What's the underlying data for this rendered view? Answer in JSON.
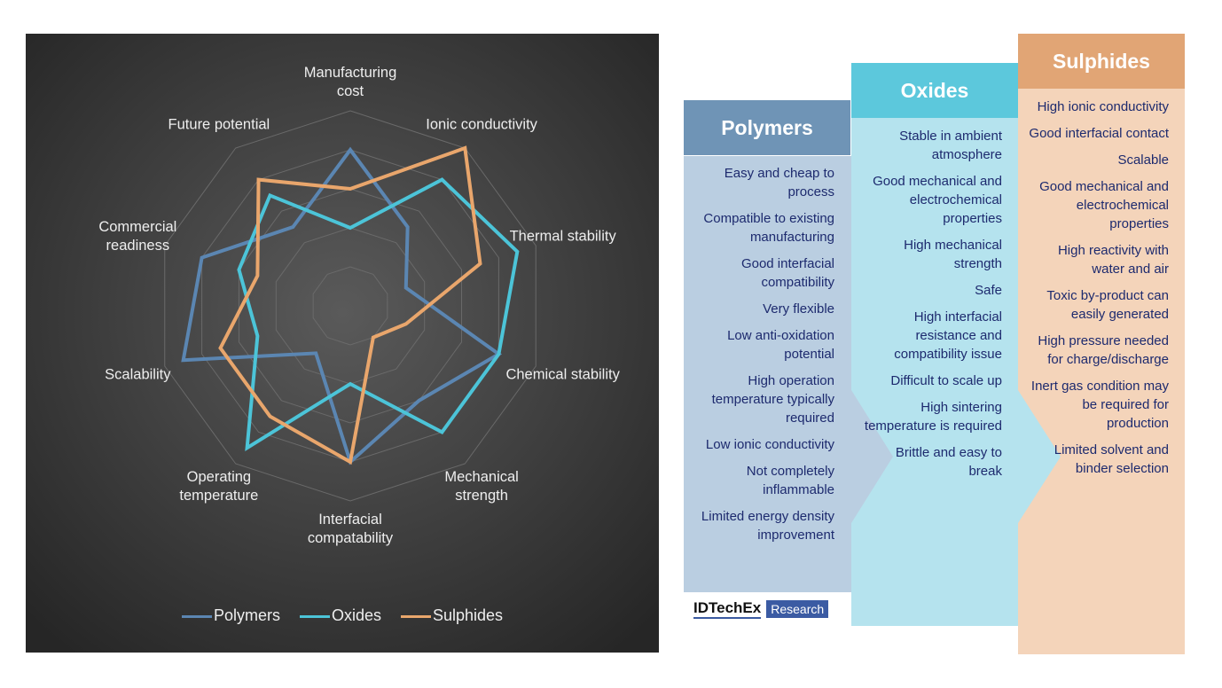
{
  "chart_data": {
    "type": "radar",
    "categories": [
      "Manufacturing cost",
      "Ionic conductivity",
      "Thermal stability",
      "Chemical stability",
      "Mechanical strength",
      "Interfacial compatability",
      "Operating temperature",
      "Scalability",
      "Commercial readiness",
      "Future potential"
    ],
    "series": [
      {
        "name": "Polymers",
        "color": "#5b86b2",
        "values": [
          8,
          5,
          3,
          8,
          6,
          8,
          3,
          9,
          8,
          5
        ]
      },
      {
        "name": "Oxides",
        "color": "#4cc4d8",
        "values": [
          4,
          8,
          9,
          8,
          8,
          4,
          9,
          5,
          6,
          7
        ]
      },
      {
        "name": "Sulphides",
        "color": "#e9a66c",
        "values": [
          6,
          10,
          7,
          3,
          2,
          8,
          7,
          7,
          5,
          8
        ]
      }
    ],
    "ylim": [
      0,
      10
    ],
    "yticks": [
      2,
      4,
      6,
      8,
      10
    ],
    "grid": true,
    "legend": "bottom"
  },
  "columns": [
    {
      "title": "Polymers",
      "items": [
        "Easy and cheap to process",
        "Compatible to existing manufacturing",
        "Good interfacial compatibility",
        "Very flexible",
        "Low anti-oxidation potential",
        "High operation temperature typically required",
        "Low ionic conductivity",
        "Not completely inflammable",
        "Limited energy density improvement"
      ]
    },
    {
      "title": "Oxides",
      "items": [
        "Stable in ambient atmosphere",
        "Good mechanical and electrochemical properties",
        "High mechanical strength",
        "Safe",
        "High interfacial resistance and compatibility issue",
        "Difficult to scale up",
        "High sintering temperature is required",
        "Brittle and easy to break"
      ]
    },
    {
      "title": "Sulphides",
      "items": [
        "High ionic conductivity",
        "Good interfacial contact",
        "Scalable",
        "Good mechanical and electrochemical properties",
        "High reactivity with water and air",
        "Toxic by-product can easily generated",
        "High pressure needed for charge/discharge",
        "Inert gas condition may be required for production",
        "Limited solvent and binder selection"
      ]
    }
  ],
  "logo": {
    "brand": "IDTechEx",
    "tag": "Research"
  }
}
